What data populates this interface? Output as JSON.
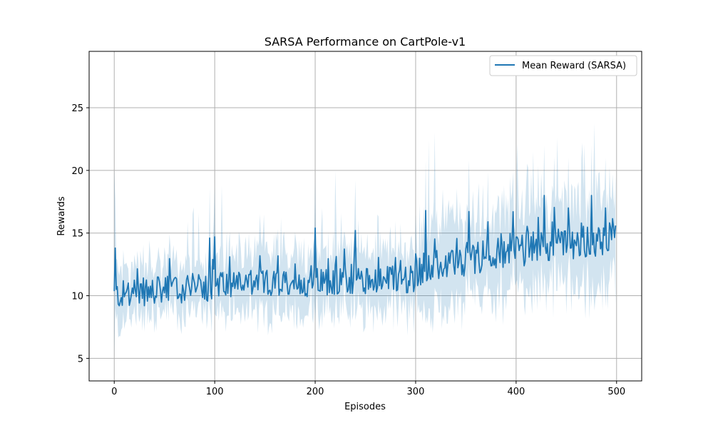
{
  "chart_data": {
    "type": "line",
    "title": "SARSA Performance on CartPole-v1",
    "xlabel": "Episodes",
    "ylabel": "Rewards",
    "xlim": [
      -25,
      525
    ],
    "ylim": [
      3.2,
      29.5
    ],
    "xticks": [
      0,
      100,
      200,
      300,
      400,
      500
    ],
    "yticks": [
      5,
      10,
      15,
      20,
      25
    ],
    "grid": true,
    "legend_position": "upper right",
    "series": [
      {
        "name": "Mean Reward (SARSA)",
        "color": "#1f77b4",
        "band_color": "#1f77b4",
        "band_alpha": 0.2,
        "segments": [
          {
            "range": [
              0,
              100
            ],
            "start": 9.8,
            "end": 10.6,
            "noise": 1.6,
            "band": 2.0
          },
          {
            "range": [
              100,
              300
            ],
            "start": 10.6,
            "end": 11.2,
            "noise": 1.5,
            "band": 2.4
          },
          {
            "range": [
              300,
              400
            ],
            "start": 11.8,
            "end": 13.6,
            "noise": 1.8,
            "band": 3.2
          },
          {
            "range": [
              400,
              500
            ],
            "start": 13.4,
            "end": 14.6,
            "noise": 1.9,
            "band": 3.6
          }
        ],
        "highlights": [
          {
            "x": 1,
            "y": 13.8
          },
          {
            "x": 95,
            "y": 14.6
          },
          {
            "x": 100,
            "y": 14.7
          },
          {
            "x": 200,
            "y": 15.4
          },
          {
            "x": 240,
            "y": 15.2
          },
          {
            "x": 310,
            "y": 16.8
          },
          {
            "x": 372,
            "y": 15.9
          },
          {
            "x": 428,
            "y": 18.0
          },
          {
            "x": 452,
            "y": 17.0
          },
          {
            "x": 475,
            "y": 18.0
          },
          {
            "x": 489,
            "y": 17.0
          },
          {
            "x": 499,
            "y": 15.6
          }
        ]
      }
    ]
  }
}
